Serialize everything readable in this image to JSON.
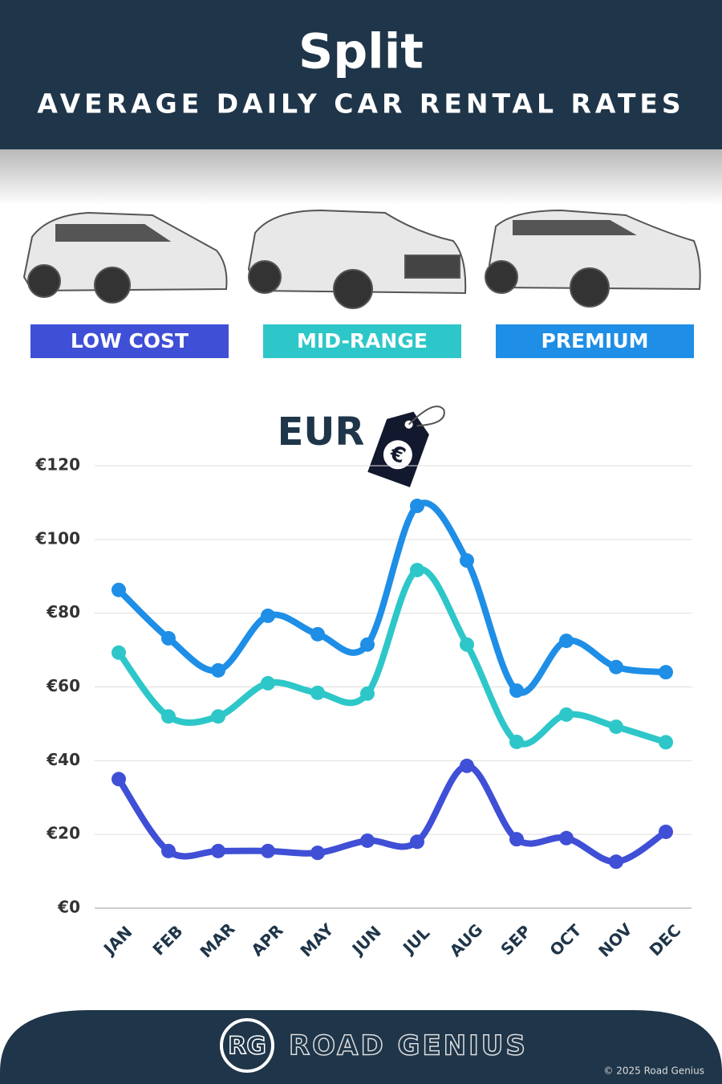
{
  "chart_data": {
    "type": "line",
    "title": "Split",
    "subtitle": "AVERAGE DAILY CAR RENTAL RATES",
    "annotation": "EUR",
    "currency_symbol": "€",
    "categories": [
      "JAN",
      "FEB",
      "MAR",
      "APR",
      "MAY",
      "JUN",
      "JUL",
      "AUG",
      "SEP",
      "OCT",
      "NOV",
      "DEC"
    ],
    "series": [
      {
        "name": "LOW COST",
        "color": "#3f4fd6",
        "values": [
          35,
          15.5,
          15.5,
          15.5,
          15,
          18.3,
          18,
          38.6,
          18.7,
          19,
          12.6,
          20.7
        ]
      },
      {
        "name": "MID-RANGE",
        "color": "#2ec7c9",
        "values": [
          69.3,
          52,
          52,
          61,
          58.4,
          58.2,
          91.7,
          71.5,
          45.1,
          52.5,
          49.2,
          45
        ]
      },
      {
        "name": "PREMIUM",
        "color": "#1e8ee6",
        "values": [
          86.3,
          73.2,
          64.5,
          79.3,
          74.3,
          71.5,
          109.1,
          94.3,
          59,
          72.5,
          65.4,
          64
        ]
      }
    ],
    "ylim": [
      0,
      120
    ],
    "yticks": [
      {
        "value": 0,
        "label": "€0"
      },
      {
        "value": 20,
        "label": "€20"
      },
      {
        "value": 40,
        "label": "€40"
      },
      {
        "value": 60,
        "label": "€60"
      },
      {
        "value": 80,
        "label": "€80"
      },
      {
        "value": 100,
        "label": "€100"
      },
      {
        "value": 120,
        "label": "€120"
      }
    ],
    "grid": true,
    "footer": {
      "logo": "RG",
      "brand": "ROAD GENIUS",
      "copyright": "© 2025 Road Genius"
    }
  }
}
